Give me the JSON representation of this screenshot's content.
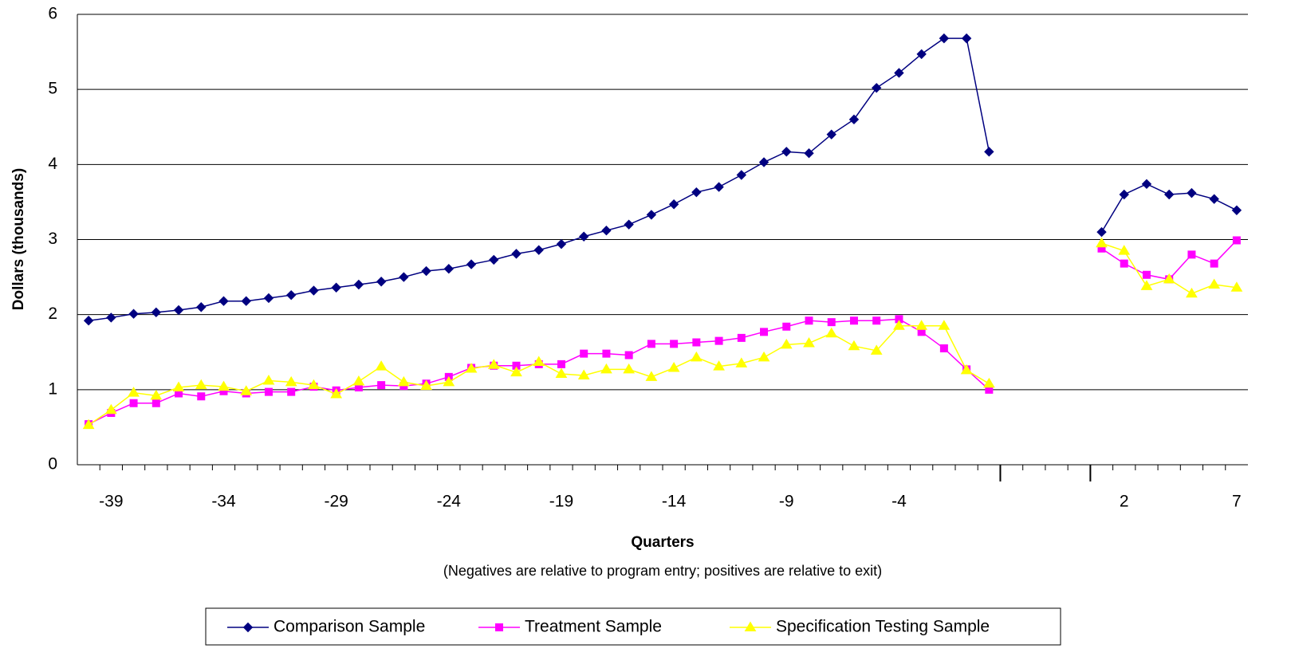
{
  "chart_data": {
    "type": "line",
    "x_label": "Quarters",
    "x_note": "(Negatives are relative to program entry; positives are relative to exit)",
    "y_label": "Dollars (thousands)",
    "categories": [
      null,
      "-39",
      null,
      null,
      null,
      null,
      "-34",
      null,
      null,
      null,
      null,
      "-29",
      null,
      null,
      null,
      null,
      "-24",
      null,
      null,
      null,
      null,
      "-19",
      null,
      null,
      null,
      null,
      "-14",
      null,
      null,
      null,
      null,
      "-9",
      null,
      null,
      null,
      null,
      "-4",
      null,
      null,
      null,
      null,
      null,
      null,
      null,
      null,
      null,
      "2",
      null,
      null,
      null,
      null,
      "7"
    ],
    "series": [
      {
        "name": "Comparison Sample",
        "color": "#000080",
        "marker": "diamond",
        "values": [
          1.92,
          1.96,
          2.01,
          2.03,
          2.06,
          2.1,
          2.18,
          2.18,
          2.22,
          2.26,
          2.32,
          2.36,
          2.4,
          2.44,
          2.5,
          2.58,
          2.61,
          2.67,
          2.73,
          2.81,
          2.86,
          2.94,
          3.04,
          3.12,
          3.2,
          3.33,
          3.47,
          3.63,
          3.7,
          3.86,
          4.03,
          4.17,
          4.15,
          4.4,
          4.6,
          5.02,
          5.22,
          5.47,
          5.68,
          5.68,
          4.17,
          null,
          null,
          null,
          null,
          3.1,
          3.6,
          3.74,
          3.6,
          3.62,
          3.54,
          3.39
        ]
      },
      {
        "name": "Treatment Sample",
        "color": "#ff00ff",
        "marker": "square",
        "values": [
          0.54,
          0.69,
          0.82,
          0.82,
          0.95,
          0.91,
          0.98,
          0.95,
          0.97,
          0.97,
          1.04,
          0.99,
          1.03,
          1.06,
          1.05,
          1.08,
          1.17,
          1.29,
          1.32,
          1.32,
          1.34,
          1.34,
          1.48,
          1.48,
          1.46,
          1.61,
          1.61,
          1.63,
          1.65,
          1.69,
          1.77,
          1.84,
          1.92,
          1.9,
          1.92,
          1.92,
          1.94,
          1.77,
          1.55,
          1.27,
          1.0,
          null,
          null,
          null,
          null,
          2.88,
          2.68,
          2.53,
          2.47,
          2.8,
          2.68,
          2.99
        ]
      },
      {
        "name": "Specification Testing Sample",
        "color": "#ffff00",
        "marker": "triangle",
        "values": [
          0.53,
          0.73,
          0.96,
          0.92,
          1.03,
          1.06,
          1.04,
          0.98,
          1.12,
          1.1,
          1.06,
          0.94,
          1.11,
          1.31,
          1.1,
          1.05,
          1.1,
          1.28,
          1.33,
          1.23,
          1.37,
          1.21,
          1.19,
          1.27,
          1.27,
          1.17,
          1.29,
          1.43,
          1.31,
          1.35,
          1.43,
          1.6,
          1.62,
          1.75,
          1.58,
          1.52,
          1.85,
          1.85,
          1.85,
          1.26,
          1.08,
          null,
          null,
          null,
          null,
          2.95,
          2.85,
          2.38,
          2.47,
          2.28,
          2.4,
          2.36
        ]
      }
    ],
    "ylim": [
      0,
      6
    ],
    "yticks": [
      0,
      1,
      2,
      3,
      4,
      5,
      6
    ],
    "grid": true
  }
}
